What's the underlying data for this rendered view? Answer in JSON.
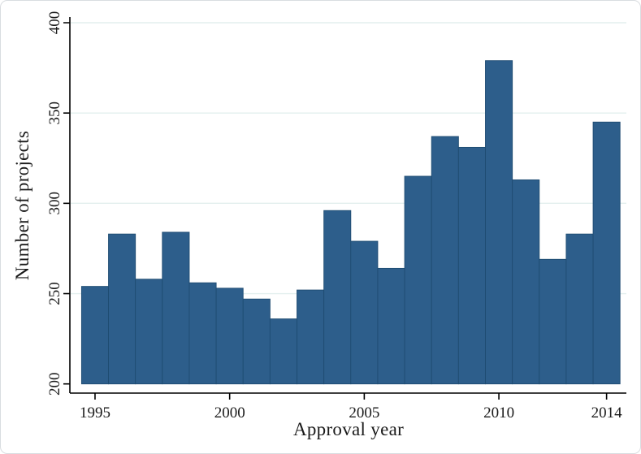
{
  "figure": {
    "background": "#ffffff",
    "frame_border_color": "#d9dde0"
  },
  "chart_data": {
    "type": "bar",
    "title": "",
    "xlabel": "Approval year",
    "ylabel": "Number of projects",
    "categories": [
      1995,
      1996,
      1997,
      1998,
      1999,
      2000,
      2001,
      2002,
      2003,
      2004,
      2005,
      2006,
      2007,
      2008,
      2009,
      2010,
      2011,
      2012,
      2013,
      2014
    ],
    "values": [
      254,
      283,
      258,
      284,
      256,
      253,
      247,
      236,
      252,
      296,
      279,
      264,
      315,
      337,
      331,
      379,
      313,
      269,
      283,
      345
    ],
    "ylim": [
      200,
      400
    ],
    "yticks": [
      200,
      250,
      300,
      350,
      400
    ],
    "xticks": [
      1995,
      2000,
      2005,
      2010,
      2014
    ],
    "grid": true,
    "legend": "none",
    "bar_color": "#2d5e8b",
    "bar_border_color": "#1f4c72",
    "grid_color": "#e3efee",
    "axis_color": "#000000",
    "tick_label_color": "#1a1a1a"
  }
}
